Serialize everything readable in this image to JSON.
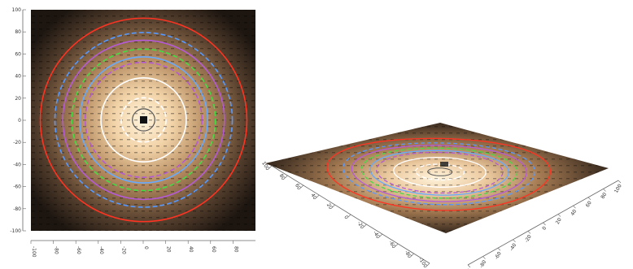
{
  "chart_data": [
    {
      "type": "heatmap",
      "view": "2d-contour",
      "x_ticks": [
        "-100",
        "-80",
        "-60",
        "-40",
        "-20",
        "0",
        "20",
        "40",
        "60",
        "80"
      ],
      "y_ticks": [
        "100",
        "80",
        "60",
        "40",
        "20",
        "0",
        "-20",
        "-40",
        "-60",
        "-80",
        "-100"
      ],
      "xlim": [
        -100,
        100
      ],
      "ylim": [
        -100,
        100
      ],
      "contours": [
        {
          "radius": 10,
          "color": "#555555"
        },
        {
          "radius": 20,
          "color": "#ffffff"
        },
        {
          "radius": 38,
          "color": "#ffffff"
        },
        {
          "radius": 52,
          "color": "#b55ad6"
        },
        {
          "radius": 57,
          "color": "#66aaff"
        },
        {
          "radius": 64,
          "color": "#44dd44"
        },
        {
          "radius": 72,
          "color": "#b55ad6"
        },
        {
          "radius": 79,
          "color": "#5599ff"
        },
        {
          "radius": 92,
          "color": "#ff3322"
        }
      ],
      "colors": {
        "center": "#ffe8c8",
        "mid": "#c89a68",
        "edge": "#2a2018"
      }
    },
    {
      "type": "heatmap",
      "view": "3d-perspective",
      "x_ticks": [
        "-100",
        "-80",
        "-60",
        "-40",
        "-20",
        "0",
        "20",
        "40",
        "60",
        "80",
        "100"
      ],
      "y_ticks": [
        "-100",
        "-80",
        "-60",
        "-40",
        "-20",
        "0",
        "20",
        "40",
        "60",
        "80",
        "100"
      ],
      "xlim": [
        -100,
        100
      ],
      "ylim": [
        -100,
        100
      ]
    }
  ]
}
